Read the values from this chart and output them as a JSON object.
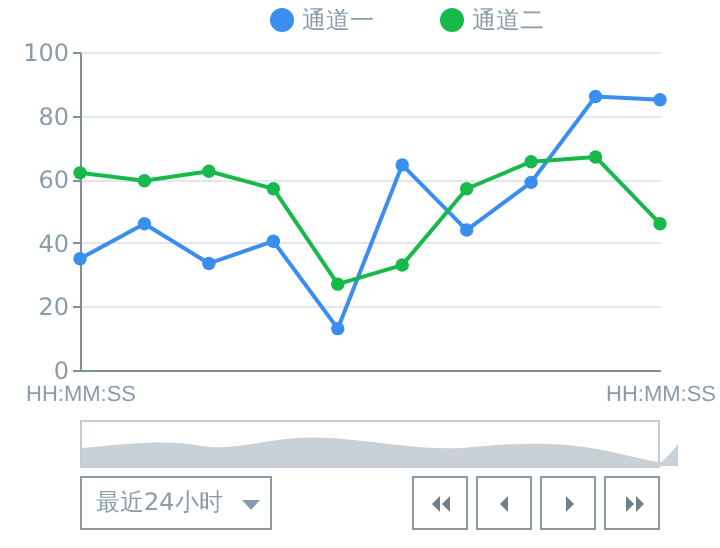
{
  "chart_data": {
    "type": "line",
    "categories": [
      "HH:MM:SS",
      null,
      null,
      null,
      null,
      null,
      null,
      null,
      null,
      "HH:MM:SS"
    ],
    "series": [
      {
        "name": "通道一",
        "color": "#3a8ef0",
        "values": [
          35,
          46,
          33.5,
          40.5,
          13,
          64.5,
          44,
          59,
          86,
          85
        ]
      },
      {
        "name": "通道二",
        "color": "#16b94a",
        "values": [
          62,
          59.5,
          62.5,
          57,
          27,
          33,
          57,
          65.5,
          67,
          46
        ]
      }
    ],
    "ylim": [
      0,
      100
    ],
    "yticks": [
      0,
      20,
      40,
      60,
      80,
      100
    ],
    "grid": "y",
    "legend": "top",
    "marker": "circle",
    "annotations": [
      "最近24小时"
    ]
  }
}
